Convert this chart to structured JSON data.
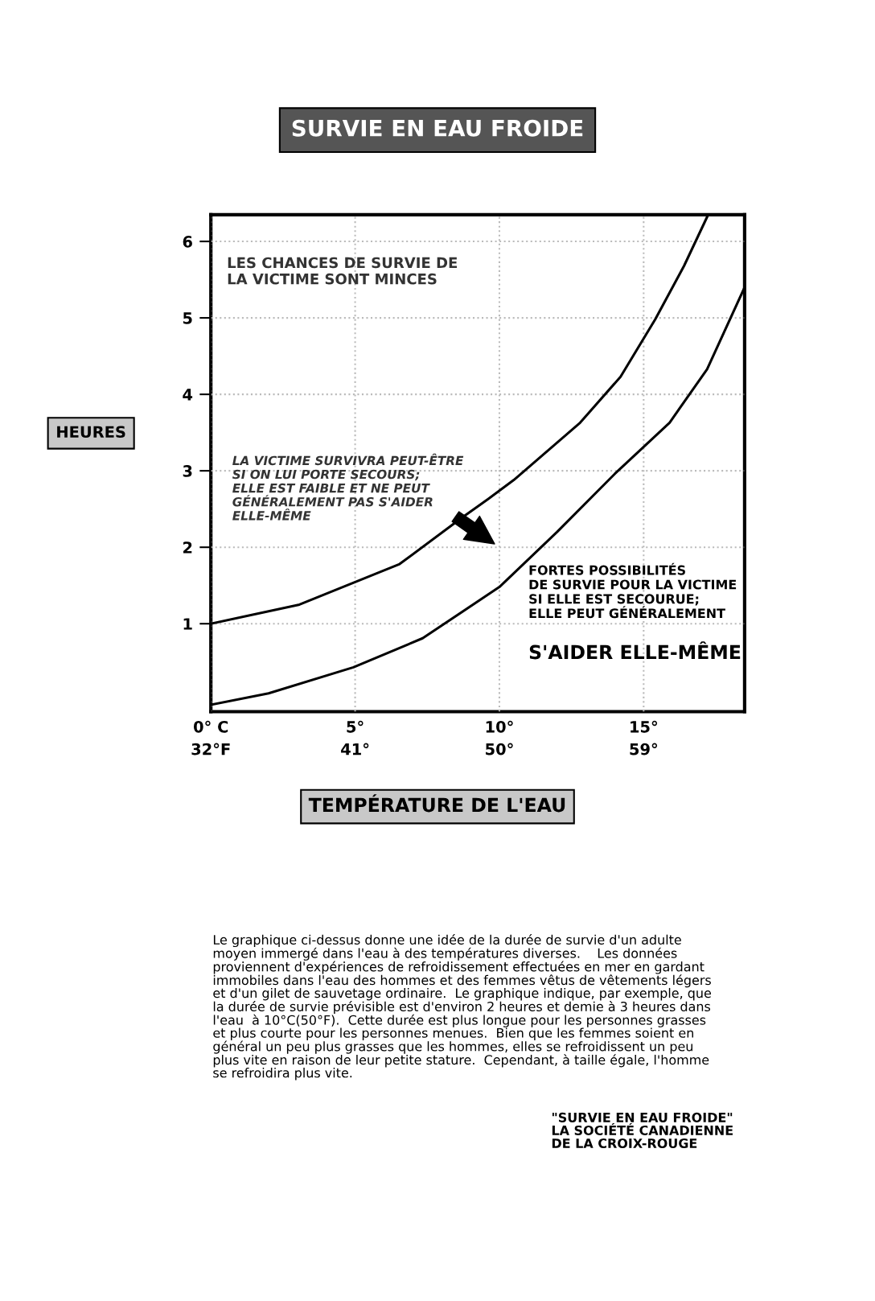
{
  "chart_data": {
    "type": "line",
    "title": "SURVIE EN EAU FROIDE",
    "xlabel": "TEMPÉRATURE DE L'EAU",
    "ylabel": "HEURES",
    "xlim": [
      0,
      18.5
    ],
    "ylim": [
      -0.15,
      6.35
    ],
    "xticks": [
      {
        "value": 0,
        "label": "0° C"
      },
      {
        "value": 5,
        "label": "5°"
      },
      {
        "value": 10,
        "label": "10°"
      },
      {
        "value": 15,
        "label": "15°"
      }
    ],
    "x2lim": [
      32,
      65.3
    ],
    "x2ticks": [
      {
        "value": 32,
        "label": "32°F"
      },
      {
        "value": 41,
        "label": "41°"
      },
      {
        "value": 50,
        "label": "50°"
      },
      {
        "value": 59,
        "label": "59°"
      }
    ],
    "yticks": [
      1,
      2,
      3,
      4,
      5,
      6
    ],
    "grid": true,
    "marker": "none",
    "line_style": "solid",
    "series": [
      {
        "color": "#000000",
        "x": [
          0,
          3.07,
          6.54,
          8.68,
          9.61,
          10.5,
          12.8,
          14.2,
          15.4,
          16.4,
          17.2
        ],
        "values": [
          1.0,
          1.25,
          1.78,
          2.38,
          2.63,
          2.88,
          3.63,
          4.23,
          4.98,
          5.68,
          6.32
        ]
      },
      {
        "color": "#000000",
        "x": [
          0,
          2.0,
          4.94,
          7.34,
          10.0,
          12.0,
          14.0,
          15.9,
          17.2,
          18.5
        ],
        "values": [
          -0.06,
          0.09,
          0.43,
          0.81,
          1.48,
          2.2,
          2.96,
          3.63,
          4.33,
          5.4
        ]
      }
    ],
    "annotations": [
      "LES CHANCES DE SURVIE DE\nLA VICTIME SONT MINCES",
      "LA VICTIME SURVIVRA PEUT-ÊTRE\nSI ON LUI PORTE SECOURS;\nELLE EST FAIBLE ET NE PEUT\nGÉNÉRALEMENT PAS S'AIDER\nELLE-MÊME",
      "FORTES POSSIBILITÉS\nDE SURVIE POUR LA VICTIME\nSI ELLE EST SECOURUE;\nELLE PEUT GÉNÉRALEMENT",
      "S'AIDER ELLE-MÊME",
      "Le graphique ci-dessus donne une idée de la durée de survie d'un adulte\nmoyen immergé dans l'eau à des températures diverses.    Les données\nproviennent d'expériences de refroidissement effectuées en mer en gardant\nimmobiles dans l'eau des hommes et des femmes vêtus de vêtements légers\net d'un gilet de sauvetage ordinaire.  Le graphique indique, par exemple, que\nla durée de survie prévisible est d'environ 2 heures et demie à 3 heures dans\nl'eau  à 10°C(50°F).  Cette durée est plus longue pour les personnes grasses\net plus courte pour les personnes menues.  Bien que les femmes soient en\ngénéral un peu plus grasses que les hommes, elles se refroidissent un peu\nplus vite en raison de leur petite stature.  Cependant, à taille égale, l'homme\nse refroidira plus vite.",
      "\"SURVIE EN EAU FROIDE\"\nLA SOCIÉTÉ CANADIENNE\nDE LA CROIX-ROUGE"
    ]
  }
}
